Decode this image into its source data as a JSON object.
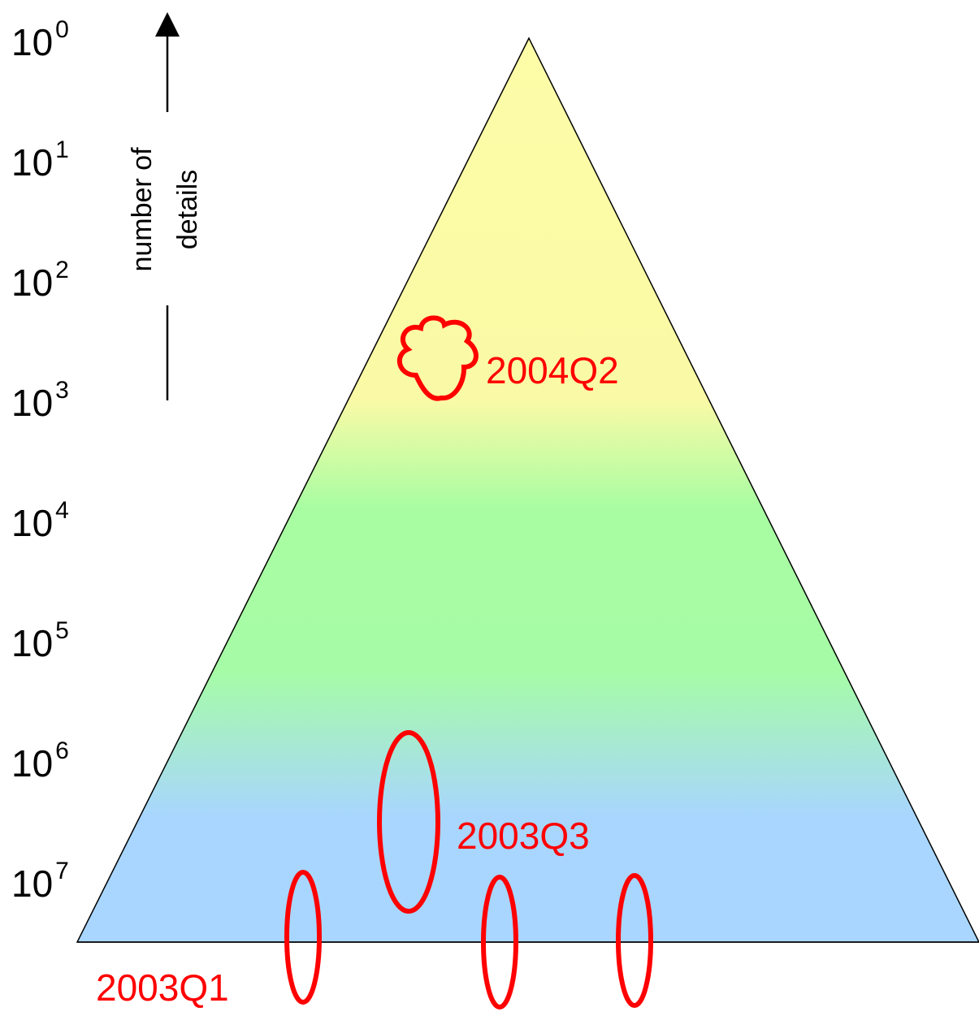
{
  "axis": {
    "label_line1": "number of",
    "label_line2": "details",
    "direction": "up-arrow"
  },
  "ticks": [
    {
      "base": "10",
      "exp": "0"
    },
    {
      "base": "10",
      "exp": "1"
    },
    {
      "base": "10",
      "exp": "2"
    },
    {
      "base": "10",
      "exp": "3"
    },
    {
      "base": "10",
      "exp": "4"
    },
    {
      "base": "10",
      "exp": "5"
    },
    {
      "base": "10",
      "exp": "6"
    },
    {
      "base": "10",
      "exp": "7"
    }
  ],
  "pyramid": {
    "gradient_colors": [
      "#fdfda8",
      "#fafaa6",
      "#a8fda2",
      "#a6fca6",
      "#a8d6fe",
      "#a8d6fe"
    ]
  },
  "callouts": {
    "q2_2004": {
      "label": "2004Q2",
      "shape": "cloud"
    },
    "q3_2003": {
      "label": "2003Q3",
      "shape": "ellipse"
    },
    "q1_2003": {
      "label": "2003Q1",
      "shape": "ellipse"
    }
  },
  "colors": {
    "highlight": "#ff0000",
    "outline": "#000000"
  }
}
